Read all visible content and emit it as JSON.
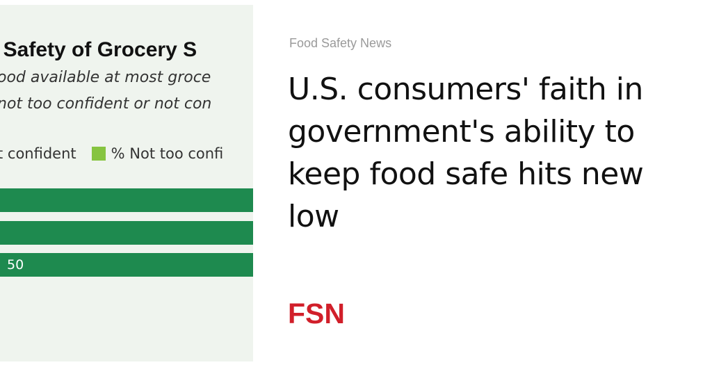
{
  "thumbnail": {
    "title": "n Safety of Grocery S",
    "subtitle_line1": "ood available at most groce",
    "subtitle_line2": "not too confident or not con",
    "legend": [
      {
        "label": "t confident",
        "color": "#1e8a4f"
      },
      {
        "label": "% Not too confi",
        "color": "#86c440"
      }
    ],
    "bars": [
      {
        "label": "",
        "value": null,
        "color": "#1e8a4f"
      },
      {
        "label": "",
        "value": null,
        "color": "#1e8a4f"
      },
      {
        "label": "50",
        "value": 50,
        "color": "#1e8a4f"
      }
    ]
  },
  "article": {
    "source": "Food Safety News",
    "headline": "U.S. consumers' faith in government's ability to keep food safe hits new low"
  },
  "logo": {
    "text": "FSN",
    "color": "#d11f2a"
  }
}
